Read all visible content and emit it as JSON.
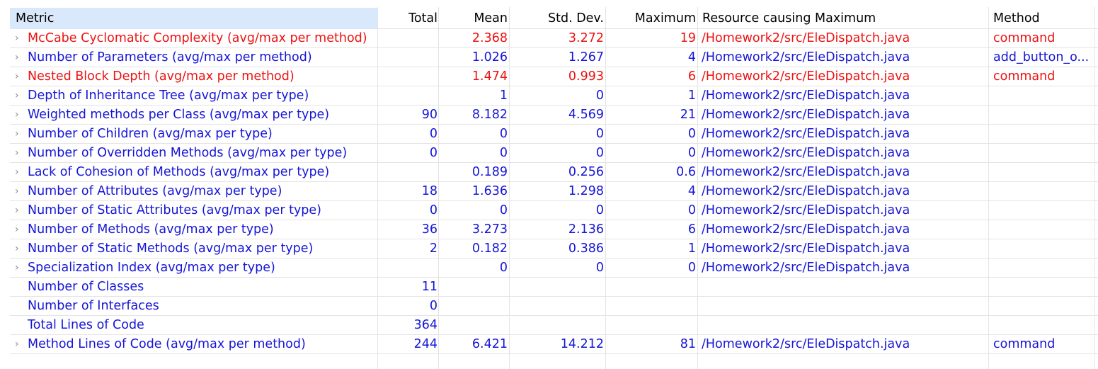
{
  "colors": {
    "normal": "#1515d8",
    "warning": "#ee1111",
    "header_bg": "#d9e8fb"
  },
  "columns": {
    "metric": "Metric",
    "total": "Total",
    "mean": "Mean",
    "std": "Std. Dev.",
    "max": "Maximum",
    "resource": "Resource causing Maximum",
    "method": "Method"
  },
  "rows": [
    {
      "metric": "McCabe Cyclomatic Complexity (avg/max per method)",
      "total": "",
      "mean": "2.368",
      "std": "3.272",
      "max": "19",
      "resource": "/Homework2/src/EleDispatch.java",
      "method": "command",
      "status": "warning",
      "expandable": true
    },
    {
      "metric": "Number of Parameters (avg/max per method)",
      "total": "",
      "mean": "1.026",
      "std": "1.267",
      "max": "4",
      "resource": "/Homework2/src/EleDispatch.java",
      "method": "add_button_o...",
      "status": "normal",
      "expandable": true
    },
    {
      "metric": "Nested Block Depth (avg/max per method)",
      "total": "",
      "mean": "1.474",
      "std": "0.993",
      "max": "6",
      "resource": "/Homework2/src/EleDispatch.java",
      "method": "command",
      "status": "warning",
      "expandable": true
    },
    {
      "metric": "Depth of Inheritance Tree (avg/max per type)",
      "total": "",
      "mean": "1",
      "std": "0",
      "max": "1",
      "resource": "/Homework2/src/EleDispatch.java",
      "method": "",
      "status": "normal",
      "expandable": true
    },
    {
      "metric": "Weighted methods per Class (avg/max per type)",
      "total": "90",
      "mean": "8.182",
      "std": "4.569",
      "max": "21",
      "resource": "/Homework2/src/EleDispatch.java",
      "method": "",
      "status": "normal",
      "expandable": true
    },
    {
      "metric": "Number of Children (avg/max per type)",
      "total": "0",
      "mean": "0",
      "std": "0",
      "max": "0",
      "resource": "/Homework2/src/EleDispatch.java",
      "method": "",
      "status": "normal",
      "expandable": true
    },
    {
      "metric": "Number of Overridden Methods (avg/max per type)",
      "total": "0",
      "mean": "0",
      "std": "0",
      "max": "0",
      "resource": "/Homework2/src/EleDispatch.java",
      "method": "",
      "status": "normal",
      "expandable": true
    },
    {
      "metric": "Lack of Cohesion of Methods (avg/max per type)",
      "total": "",
      "mean": "0.189",
      "std": "0.256",
      "max": "0.6",
      "resource": "/Homework2/src/EleDispatch.java",
      "method": "",
      "status": "normal",
      "expandable": true
    },
    {
      "metric": "Number of Attributes (avg/max per type)",
      "total": "18",
      "mean": "1.636",
      "std": "1.298",
      "max": "4",
      "resource": "/Homework2/src/EleDispatch.java",
      "method": "",
      "status": "normal",
      "expandable": true
    },
    {
      "metric": "Number of Static Attributes (avg/max per type)",
      "total": "0",
      "mean": "0",
      "std": "0",
      "max": "0",
      "resource": "/Homework2/src/EleDispatch.java",
      "method": "",
      "status": "normal",
      "expandable": true
    },
    {
      "metric": "Number of Methods (avg/max per type)",
      "total": "36",
      "mean": "3.273",
      "std": "2.136",
      "max": "6",
      "resource": "/Homework2/src/EleDispatch.java",
      "method": "",
      "status": "normal",
      "expandable": true
    },
    {
      "metric": "Number of Static Methods (avg/max per type)",
      "total": "2",
      "mean": "0.182",
      "std": "0.386",
      "max": "1",
      "resource": "/Homework2/src/EleDispatch.java",
      "method": "",
      "status": "normal",
      "expandable": true
    },
    {
      "metric": "Specialization Index (avg/max per type)",
      "total": "",
      "mean": "0",
      "std": "0",
      "max": "0",
      "resource": "/Homework2/src/EleDispatch.java",
      "method": "",
      "status": "normal",
      "expandable": true
    },
    {
      "metric": "Number of Classes",
      "total": "11",
      "mean": "",
      "std": "",
      "max": "",
      "resource": "",
      "method": "",
      "status": "normal",
      "expandable": false
    },
    {
      "metric": "Number of Interfaces",
      "total": "0",
      "mean": "",
      "std": "",
      "max": "",
      "resource": "",
      "method": "",
      "status": "normal",
      "expandable": false
    },
    {
      "metric": "Total Lines of Code",
      "total": "364",
      "mean": "",
      "std": "",
      "max": "",
      "resource": "",
      "method": "",
      "status": "normal",
      "expandable": false
    },
    {
      "metric": "Method Lines of Code (avg/max per method)",
      "total": "244",
      "mean": "6.421",
      "std": "14.212",
      "max": "81",
      "resource": "/Homework2/src/EleDispatch.java",
      "method": "command",
      "status": "normal",
      "expandable": true
    }
  ]
}
